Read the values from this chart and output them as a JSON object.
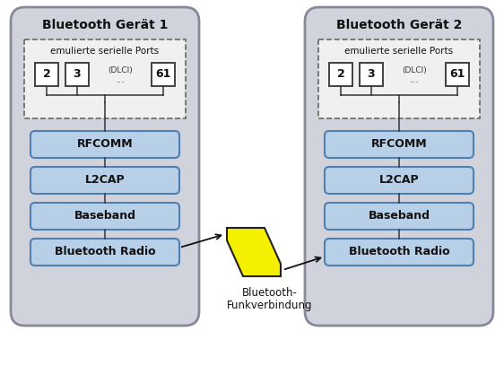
{
  "bg_color": "#ffffff",
  "outer_box_fill": "#d0d2dc",
  "outer_box_edge": "#888898",
  "dashed_box_fill": "#f0f0f0",
  "dashed_box_edge": "#666666",
  "layer_fill": "#b8cfe8",
  "layer_edge": "#5080b0",
  "port_fill": "#ffffff",
  "port_edge": "#333333",
  "title1": "Bluetooth Gerät 1",
  "title2": "Bluetooth Gerät 2",
  "dashed_label": "emulierte serielle Ports",
  "dlci_label": "(DLCI)",
  "dots": "...",
  "layers": [
    "RFCOMM",
    "L2CAP",
    "Baseband",
    "Bluetooth Radio"
  ],
  "lightning_label1": "Bluetooth-",
  "lightning_label2": "Funkverbindung",
  "lightning_fill": "#f5f000",
  "lightning_edge": "#222222",
  "line_color": "#333333",
  "text_color": "#111111"
}
